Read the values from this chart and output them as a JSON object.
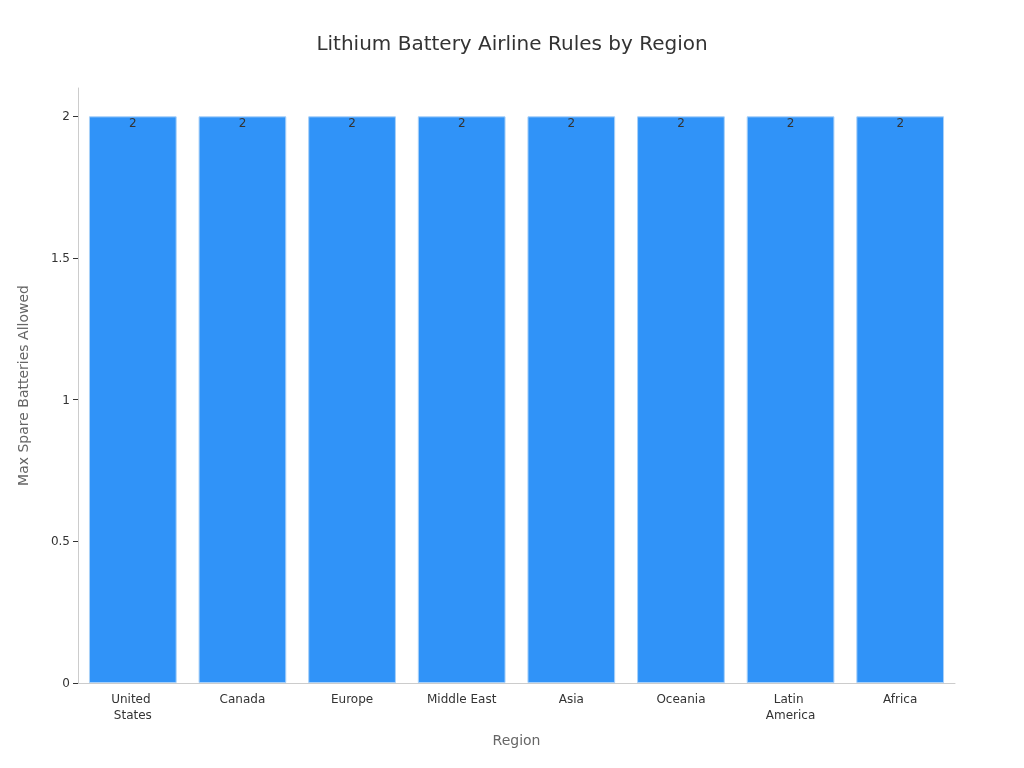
{
  "chart_data": {
    "type": "bar",
    "title": "Lithium Battery Airline Rules by Region",
    "xlabel": "Region",
    "ylabel": "Max Spare Batteries Allowed",
    "categories": [
      "United States",
      "Canada",
      "Europe",
      "Middle East",
      "Asia",
      "Oceania",
      "Latin America",
      "Africa"
    ],
    "values": [
      2,
      2,
      2,
      2,
      2,
      2,
      2,
      2
    ],
    "color": "#3093f8",
    "ylim": [
      0,
      2.1
    ],
    "yticks": [
      0,
      0.5,
      1,
      1.5,
      2
    ],
    "grid": false,
    "data_labels": true
  }
}
